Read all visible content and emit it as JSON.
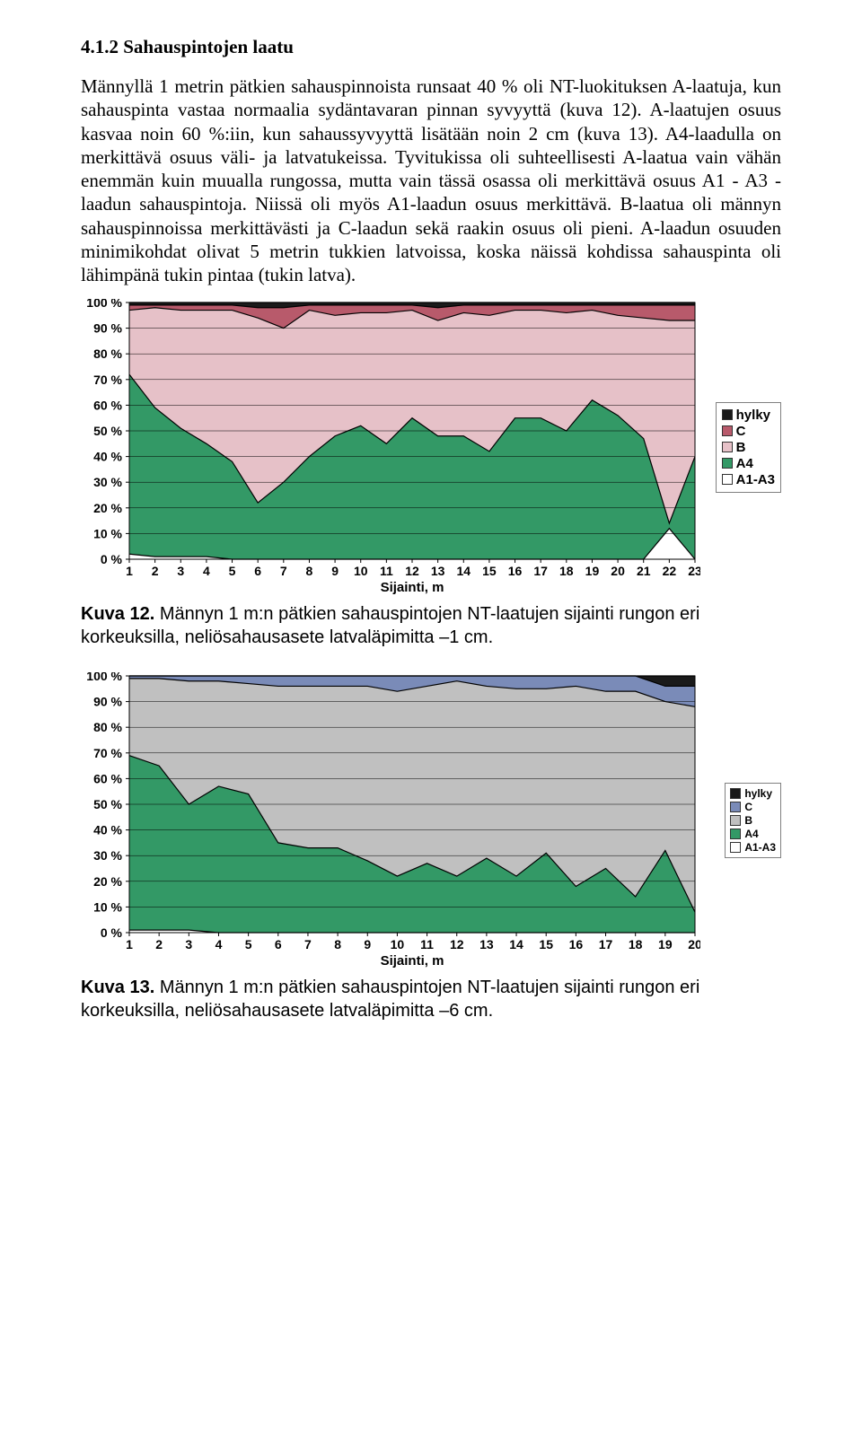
{
  "heading": "4.1.2 Sahauspintojen laatu",
  "paragraph": "Männyllä 1 metrin pätkien sahauspinnoista runsaat 40 % oli NT-luokituksen A-laatuja, kun sahauspinta vastaa normaalia sydäntavaran pinnan syvyyttä (kuva 12). A-laatujen osuus kasvaa noin 60 %:iin, kun sahaussyvyyttä lisätään noin 2 cm (kuva 13). A4-laadulla on merkittävä osuus väli- ja latvatukeissa. Tyvitukissa oli suhteellisesti A-laatua vain vähän enemmän kuin muualla rungossa, mutta vain tässä osassa oli merkittävä osuus A1 - A3 -laadun sahauspintoja. Niissä oli myös A1-laadun osuus merkittävä. B-laatua oli männyn sahauspinnoissa merkittävästi ja C-laadun sekä raakin osuus oli pieni. A-laadun osuuden minimikohdat olivat 5 metrin tukkien latvoissa, koska näissä kohdissa sahauspinta oli lähimpänä tukin pintaa (tukin latva).",
  "legend_labels": {
    "hylky": "hylky",
    "C": "C",
    "B": "B",
    "A4": "A4",
    "A1A3": "A1-A3"
  },
  "chart12": {
    "type": "area-stacked",
    "xlabel": "Sijainti, m",
    "ylim": [
      0,
      100
    ],
    "ytick_step": 10,
    "ytick_labels": [
      "0 %",
      "10 %",
      "20 %",
      "30 %",
      "40 %",
      "50 %",
      "60 %",
      "70 %",
      "80 %",
      "90 %",
      "100 %"
    ],
    "x_categories": [
      1,
      2,
      3,
      4,
      5,
      6,
      7,
      8,
      9,
      10,
      11,
      12,
      13,
      14,
      15,
      16,
      17,
      18,
      19,
      20,
      21,
      22,
      23
    ],
    "series_order": [
      "A1-A3",
      "A4",
      "B",
      "C",
      "hylky"
    ],
    "colors": {
      "A1-A3": "#ffffff",
      "A4": "#339966",
      "B": "#e6c1c8",
      "C": "#b85a6b",
      "hylky": "#1a1a1a",
      "grid": "#000000",
      "plot_bg": "#c0c0c0"
    },
    "data": {
      "A1-A3": [
        2,
        1,
        1,
        1,
        0,
        0,
        0,
        0,
        0,
        0,
        0,
        0,
        0,
        0,
        0,
        0,
        0,
        0,
        0,
        0,
        0,
        12,
        0
      ],
      "A4": [
        70,
        58,
        50,
        44,
        38,
        22,
        30,
        40,
        48,
        52,
        45,
        55,
        48,
        48,
        42,
        55,
        55,
        50,
        62,
        56,
        47,
        2,
        40
      ],
      "B": [
        25,
        39,
        46,
        52,
        59,
        72,
        60,
        57,
        47,
        44,
        51,
        42,
        45,
        48,
        53,
        42,
        42,
        46,
        35,
        39,
        47,
        79,
        53
      ],
      "C": [
        2,
        1,
        2,
        2,
        2,
        4,
        8,
        2,
        4,
        3,
        3,
        2,
        5,
        3,
        4,
        2,
        2,
        3,
        2,
        4,
        5,
        6,
        6
      ],
      "hylky": [
        1,
        1,
        1,
        1,
        1,
        2,
        2,
        1,
        1,
        1,
        1,
        1,
        2,
        1,
        1,
        1,
        1,
        1,
        1,
        1,
        1,
        1,
        1
      ]
    },
    "caption_bold": "Kuva 12.",
    "caption_rest": " Männyn 1 m:n pätkien sahauspintojen NT-laatujen sijainti rungon eri korkeuksilla, neliösahausasete latvaläpimitta –1 cm."
  },
  "chart13": {
    "type": "area-stacked",
    "xlabel": "Sijainti, m",
    "ylim": [
      0,
      100
    ],
    "ytick_step": 10,
    "ytick_labels": [
      "0 %",
      "10 %",
      "20 %",
      "30 %",
      "40 %",
      "50 %",
      "60 %",
      "70 %",
      "80 %",
      "90 %",
      "100 %"
    ],
    "x_categories": [
      1,
      2,
      3,
      4,
      5,
      6,
      7,
      8,
      9,
      10,
      11,
      12,
      13,
      14,
      15,
      16,
      17,
      18,
      19,
      20
    ],
    "series_order": [
      "A1-A3",
      "A4",
      "B",
      "C",
      "hylky"
    ],
    "colors": {
      "A1-A3": "#ffffff",
      "A4": "#339966",
      "B": "#c0c0c0",
      "C": "#7a8bb8",
      "hylky": "#1a1a1a",
      "grid": "#000000",
      "plot_bg": "#c0c0c0"
    },
    "data": {
      "A1-A3": [
        1,
        1,
        1,
        0,
        0,
        0,
        0,
        0,
        0,
        0,
        0,
        0,
        0,
        0,
        0,
        0,
        0,
        0,
        0,
        0
      ],
      "A4": [
        68,
        64,
        49,
        57,
        54,
        35,
        33,
        33,
        28,
        22,
        27,
        22,
        29,
        22,
        31,
        18,
        25,
        14,
        32,
        8
      ],
      "B": [
        30,
        34,
        48,
        41,
        43,
        61,
        63,
        63,
        68,
        72,
        69,
        76,
        67,
        73,
        64,
        78,
        69,
        80,
        58,
        80
      ],
      "C": [
        1,
        1,
        2,
        2,
        3,
        4,
        4,
        4,
        4,
        6,
        4,
        2,
        4,
        5,
        5,
        4,
        6,
        6,
        6,
        8
      ],
      "hylky": [
        0,
        0,
        0,
        0,
        0,
        0,
        0,
        0,
        0,
        0,
        0,
        0,
        0,
        0,
        0,
        0,
        0,
        0,
        4,
        4
      ]
    },
    "caption_bold": "Kuva 13.",
    "caption_rest": " Männyn 1 m:n pätkien sahauspintojen NT-laatujen sijainti rungon eri korkeuksilla, neliösahausasete latvaläpimitta –6 cm."
  }
}
